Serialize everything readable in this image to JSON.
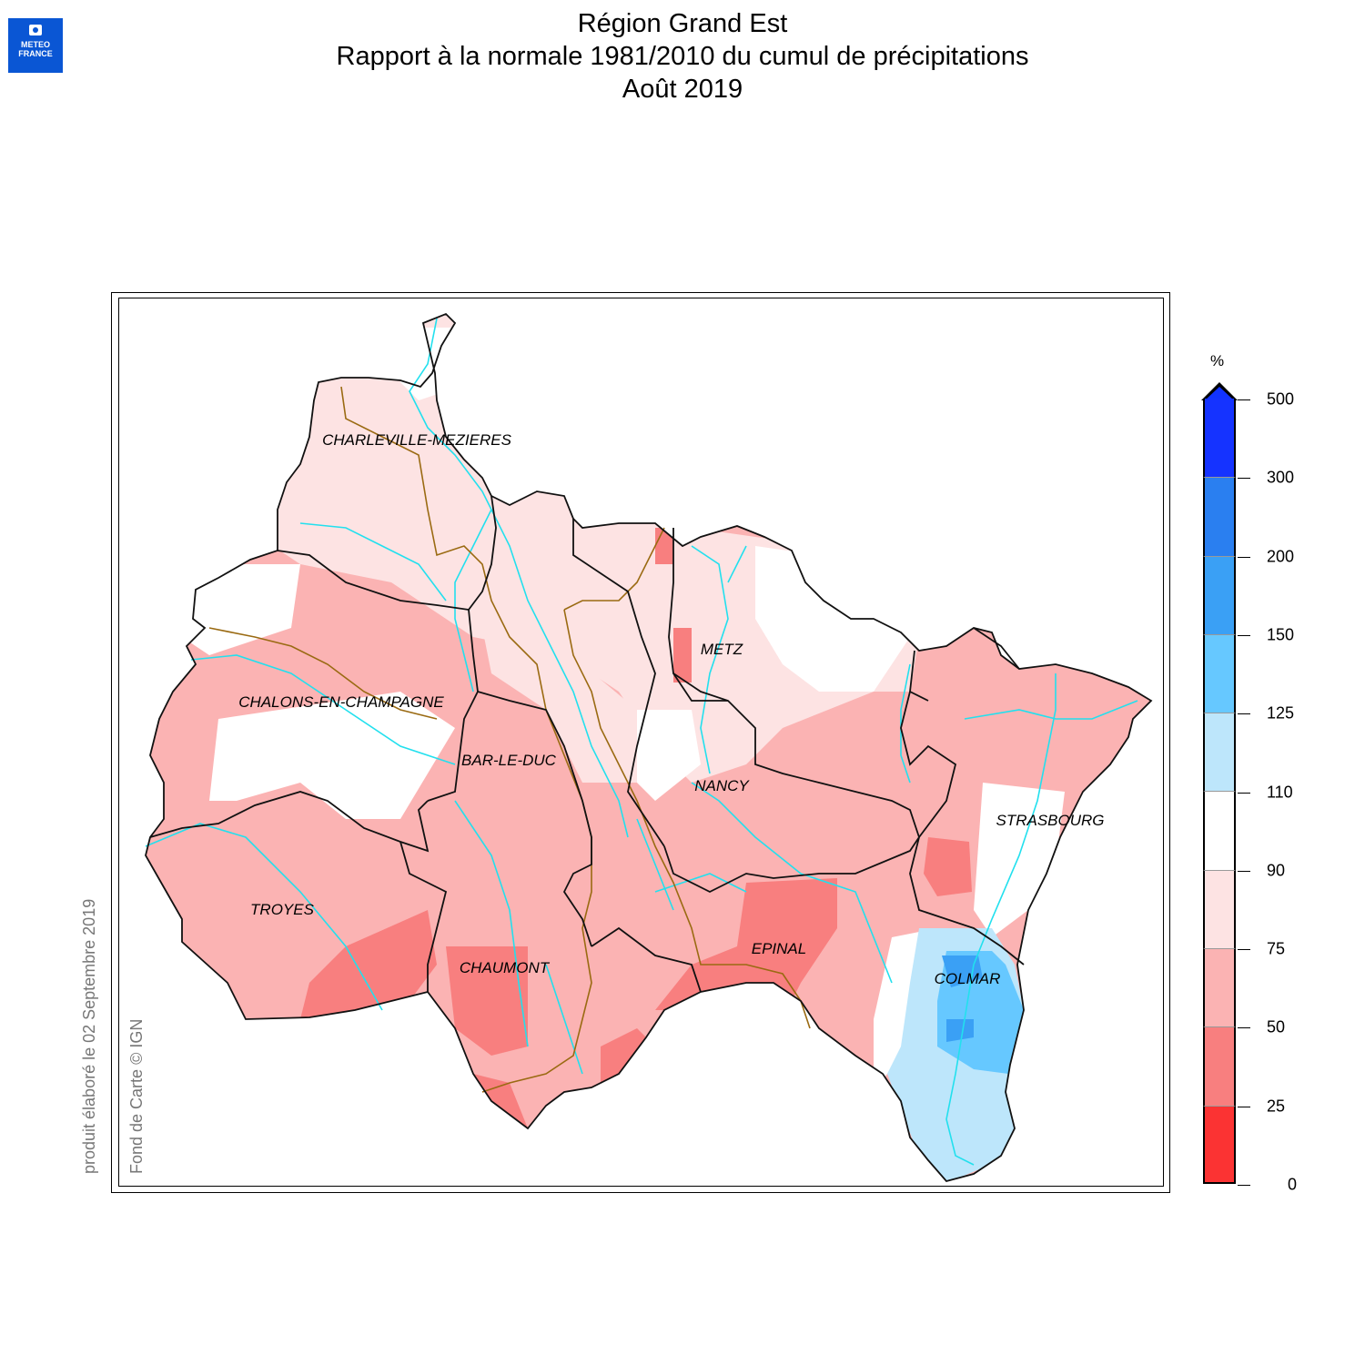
{
  "logo": {
    "line1": "METEO",
    "line2": "FRANCE"
  },
  "title": {
    "line1": "Région Grand Est",
    "line2": "Rapport à la normale 1981/2010 du cumul de précipitations",
    "line3": "Août 2019"
  },
  "side_notes": {
    "produced": "produit élaboré le 02 Septembre 2019",
    "credit": "Fond de Carte © IGN"
  },
  "cities": [
    {
      "name": "CHARLEVILLE-MEZIERES"
    },
    {
      "name": "METZ"
    },
    {
      "name": "CHALONS-EN-CHAMPAGNE"
    },
    {
      "name": "BAR-LE-DUC"
    },
    {
      "name": "NANCY"
    },
    {
      "name": "STRASBOURG"
    },
    {
      "name": "TROYES"
    },
    {
      "name": "CHAUMONT"
    },
    {
      "name": "EPINAL"
    },
    {
      "name": "COLMAR"
    }
  ],
  "legend": {
    "unit": "%",
    "ticks": [
      "500",
      "300",
      "200",
      "150",
      "125",
      "110",
      "90",
      "75",
      "50",
      "25",
      "0"
    ],
    "colors": [
      "#1533ff",
      "#2a7ff0",
      "#3aa0f5",
      "#66c8ff",
      "#bde6fb",
      "#ffffff",
      "#fde3e3",
      "#fbb3b3",
      "#f87f7f",
      "#fb3333"
    ]
  },
  "colors": {
    "border": "#111111",
    "river": "#22e0ee",
    "watershed": "#9a6a12"
  }
}
